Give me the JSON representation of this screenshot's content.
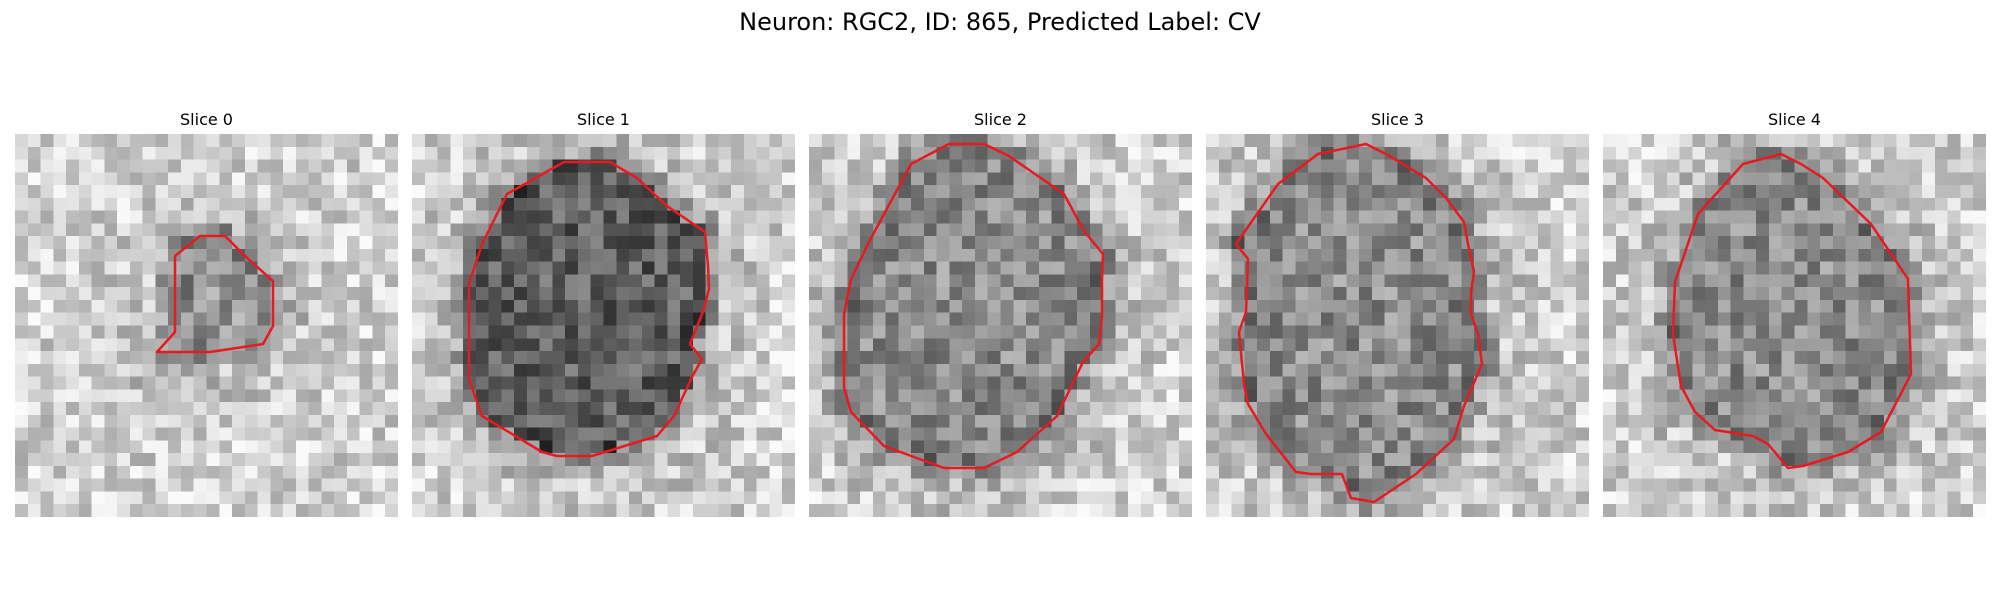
{
  "figure": {
    "title": "Neuron: RGC2, ID: 865, Predicted Label: CV"
  },
  "panels": [
    {
      "title": "Slice 0",
      "darkness": "low",
      "contour": "small blob right of center"
    },
    {
      "title": "Slice 1",
      "darkness": "high",
      "contour": "large rounded outline"
    },
    {
      "title": "Slice 2",
      "darkness": "medium",
      "contour": "large circular outline"
    },
    {
      "title": "Slice 3",
      "darkness": "medium",
      "contour": "large oval outline"
    },
    {
      "title": "Slice 4",
      "darkness": "medium",
      "contour": "large irregular outline"
    }
  ],
  "colors": {
    "contour": "#e8191f",
    "background": "#ffffff"
  }
}
